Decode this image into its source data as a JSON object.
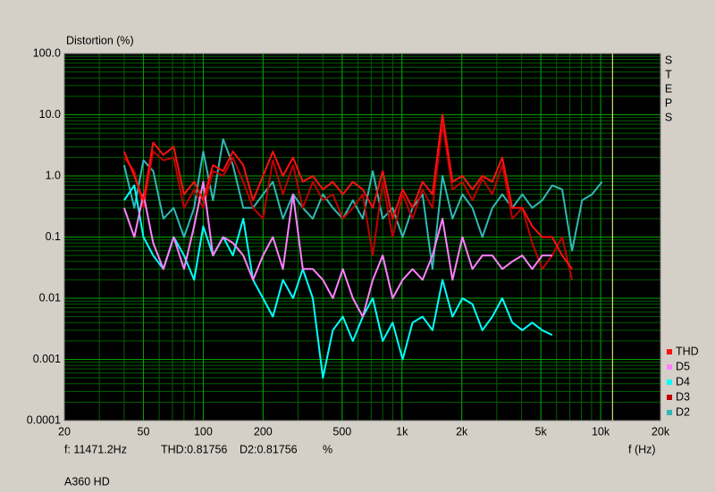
{
  "chart_data": {
    "type": "line",
    "y_label": "Distortion (%)",
    "x_label": "f (Hz)",
    "side_label": [
      "S",
      "T",
      "E",
      "P",
      "S"
    ],
    "footer": "A360 HD",
    "readout": {
      "thd": "THD:0.81756",
      "d2": "D2:0.81756",
      "unit": "%"
    },
    "cursor": {
      "value": 11471.2,
      "label": "f: 11471.2Hz",
      "color": "#ffff80"
    },
    "log_x": true,
    "log_y": true,
    "grid": true,
    "minor_grid": true,
    "legend": "lower right",
    "xlim": [
      20,
      20000
    ],
    "xticks": [
      20,
      50,
      100,
      200,
      500,
      {
        "value": 1000,
        "label": "1k"
      },
      {
        "value": 2000,
        "label": "2k"
      },
      {
        "value": 5000,
        "label": "5k"
      },
      {
        "value": 10000,
        "label": "10k"
      },
      {
        "value": 20000,
        "label": "20k"
      }
    ],
    "ylim": [
      0.0001,
      100
    ],
    "yticks": [
      {
        "value": 100,
        "label": "100.0"
      },
      {
        "value": 10,
        "label": "10.0"
      },
      {
        "value": 1,
        "label": "1.0"
      },
      0.1,
      0.01,
      0.001,
      0.0001
    ],
    "x": [
      40,
      45,
      50,
      56,
      63,
      71,
      80,
      90,
      100,
      112,
      126,
      141,
      159,
      178,
      200,
      224,
      252,
      283,
      317,
      356,
      400,
      449,
      504,
      566,
      635,
      713,
      800,
      898,
      1008,
      1131,
      1270,
      1425,
      1600,
      1796,
      2016,
      2263,
      2540,
      2851,
      3200,
      3592,
      4032,
      4525,
      5080,
      5702,
      6400,
      7184,
      8063,
      9051,
      10160
    ],
    "series": [
      {
        "name": "THD",
        "color": "#ff1010",
        "values": [
          2.5,
          1.0,
          0.4,
          3.5,
          2.2,
          3.0,
          0.5,
          0.8,
          0.4,
          1.5,
          1.2,
          2.5,
          1.5,
          0.4,
          1.0,
          2.5,
          1.0,
          2.0,
          0.8,
          1.0,
          0.6,
          0.8,
          0.5,
          0.8,
          0.6,
          0.3,
          1.2,
          0.2,
          0.6,
          0.3,
          0.8,
          0.5,
          10.0,
          0.8,
          1.0,
          0.6,
          1.0,
          0.8,
          2.0,
          0.3,
          0.3,
          0.15,
          0.1,
          0.1,
          0.05,
          0.03,
          null,
          null,
          null
        ]
      },
      {
        "name": "D5",
        "color": "#ff80ff",
        "values": [
          0.3,
          0.1,
          0.5,
          0.08,
          0.03,
          0.1,
          0.03,
          0.15,
          0.8,
          0.05,
          0.1,
          0.08,
          0.05,
          0.02,
          0.05,
          0.1,
          0.03,
          0.5,
          0.03,
          0.03,
          0.02,
          0.01,
          0.03,
          0.01,
          0.005,
          0.02,
          0.05,
          0.01,
          0.02,
          0.03,
          0.02,
          0.05,
          0.2,
          0.02,
          0.1,
          0.03,
          0.05,
          0.05,
          0.03,
          0.04,
          0.05,
          0.03,
          0.05,
          0.05,
          null,
          null,
          null,
          null,
          null
        ]
      },
      {
        "name": "D4",
        "color": "#00ffff",
        "values": [
          0.4,
          0.7,
          0.1,
          0.05,
          0.03,
          0.1,
          0.05,
          0.02,
          0.15,
          0.05,
          0.1,
          0.05,
          0.2,
          0.02,
          0.01,
          0.005,
          0.02,
          0.01,
          0.03,
          0.01,
          0.0005,
          0.003,
          0.005,
          0.002,
          0.005,
          0.01,
          0.002,
          0.004,
          0.001,
          0.004,
          0.005,
          0.003,
          0.02,
          0.005,
          0.01,
          0.008,
          0.003,
          0.005,
          0.01,
          0.004,
          0.003,
          0.004,
          0.003,
          0.0025,
          null,
          null,
          null,
          null,
          null
        ]
      },
      {
        "name": "D3",
        "color": "#c00000",
        "values": [
          2.0,
          1.2,
          0.3,
          2.5,
          1.8,
          2.0,
          0.3,
          0.6,
          0.3,
          1.2,
          1.0,
          2.0,
          0.8,
          0.3,
          0.2,
          1.8,
          0.5,
          1.5,
          0.3,
          0.8,
          0.4,
          0.5,
          0.2,
          0.3,
          0.5,
          0.05,
          0.8,
          0.1,
          0.5,
          0.2,
          0.6,
          0.3,
          7.0,
          0.6,
          0.8,
          0.4,
          0.9,
          0.5,
          1.5,
          0.2,
          0.3,
          0.08,
          0.03,
          0.05,
          0.1,
          0.02,
          null,
          null,
          null
        ]
      },
      {
        "name": "D2",
        "color": "#30b8b8",
        "values": [
          1.5,
          0.3,
          1.8,
          1.2,
          0.2,
          0.3,
          0.1,
          0.3,
          2.5,
          0.4,
          4.0,
          1.5,
          0.3,
          0.3,
          0.5,
          0.8,
          0.2,
          0.5,
          0.3,
          0.2,
          0.5,
          0.3,
          0.2,
          0.4,
          0.2,
          1.2,
          0.2,
          0.3,
          0.1,
          0.3,
          0.5,
          0.03,
          1.0,
          0.2,
          0.5,
          0.3,
          0.1,
          0.3,
          0.5,
          0.3,
          0.5,
          0.3,
          0.4,
          0.7,
          0.6,
          0.06,
          0.4,
          0.5,
          0.8
        ]
      }
    ]
  }
}
